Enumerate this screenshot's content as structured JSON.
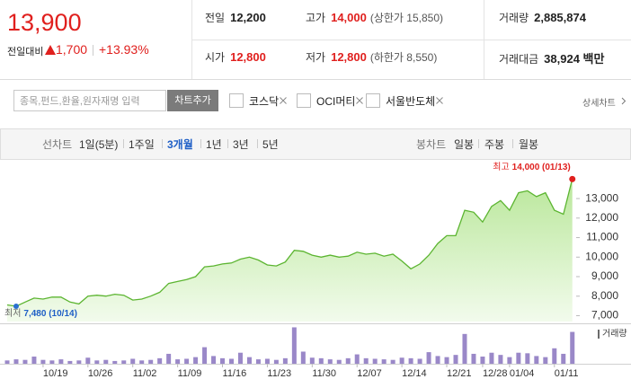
{
  "quote": {
    "price": "13,900",
    "change_label": "전일대비",
    "change": "1,700",
    "change_pct": "+13.93%"
  },
  "stats": [
    {
      "label": "전일",
      "value": "12,200"
    },
    {
      "label": "고가",
      "value": "14,000",
      "note": "(상한가 15,850)"
    },
    {
      "label": "거래량",
      "value": "2,885,874"
    },
    {
      "label": "시가",
      "value": "12,800"
    },
    {
      "label": "저가",
      "value": "12,800",
      "note": "(하한가 8,550)"
    },
    {
      "label": "거래대금",
      "value": "38,924 백만"
    }
  ],
  "toolbar": {
    "placeholder": "종목,펀드,환율,원자재명 입력",
    "button": "차트추가",
    "compare": [
      "코스닥",
      "OCI머티",
      "서울반도체"
    ],
    "detail": "상세차트"
  },
  "tabs": {
    "line_label": "선차트",
    "line": [
      "1일(5분)",
      "1주일",
      "3개월",
      "1년",
      "3년",
      "5년"
    ],
    "selected": 2,
    "candle_label": "봉차트",
    "candle": [
      "일봉",
      "주봉",
      "월봉"
    ]
  },
  "chart_data": [
    {
      "type": "area",
      "series": [
        {
          "color": "#5cb531",
          "values": [
            7550,
            7480,
            7700,
            7900,
            7850,
            7950,
            7950,
            7700,
            7600,
            8000,
            8050,
            8000,
            8100,
            8050,
            7800,
            7850,
            8000,
            8200,
            8650,
            8750,
            8850,
            9000,
            9500,
            9550,
            9650,
            9700,
            9900,
            10000,
            9850,
            9600,
            9550,
            9750,
            10350,
            10300,
            10100,
            10000,
            10100,
            10000,
            10050,
            10250,
            10150,
            10200,
            10050,
            10150,
            9800,
            9400,
            9650,
            10100,
            10700,
            11100,
            11100,
            12400,
            12300,
            11800,
            12600,
            12900,
            12400,
            13300,
            13400,
            13100,
            13300,
            12400,
            12200,
            14000
          ]
        }
      ],
      "ylim": [
        6700,
        14200
      ],
      "yticks": [
        {
          "value": 7000,
          "label": "7,000"
        },
        {
          "value": 8000,
          "label": "8,000"
        },
        {
          "value": 9000,
          "label": "9,000"
        },
        {
          "value": 10000,
          "label": "10,000"
        },
        {
          "value": 11000,
          "label": "11,000"
        },
        {
          "value": 12000,
          "label": "12,000"
        },
        {
          "value": 13000,
          "label": "13,000"
        }
      ],
      "annotations": {
        "high_label": "최고",
        "high": "14,000 (01/13)",
        "low_label": "최저",
        "low": "7,480 (10/14)"
      }
    },
    {
      "type": "bar",
      "categories": [
        null,
        null,
        null,
        null,
        "10/19",
        null,
        null,
        null,
        null,
        "10/26",
        null,
        null,
        null,
        null,
        "11/02",
        null,
        null,
        null,
        null,
        "11/09",
        null,
        null,
        null,
        null,
        "11/16",
        null,
        null,
        null,
        null,
        "11/23",
        null,
        null,
        null,
        null,
        "11/30",
        null,
        null,
        null,
        null,
        "12/07",
        null,
        null,
        null,
        null,
        "12/14",
        null,
        null,
        null,
        null,
        "12/21",
        null,
        null,
        null,
        "12/28",
        null,
        null,
        "01/04",
        null,
        null,
        null,
        null,
        "01/11",
        null,
        null
      ],
      "series": [
        {
          "name": "거래량",
          "color": "#9a88c8",
          "values": [
            300000,
            400000,
            350000,
            650000,
            350000,
            300000,
            400000,
            250000,
            300000,
            550000,
            300000,
            350000,
            250000,
            300000,
            450000,
            300000,
            350000,
            500000,
            900000,
            400000,
            450000,
            600000,
            1500000,
            700000,
            500000,
            450000,
            1000000,
            600000,
            400000,
            450000,
            350000,
            500000,
            3300000,
            1100000,
            550000,
            500000,
            400000,
            350000,
            500000,
            850000,
            500000,
            450000,
            400000,
            350000,
            550000,
            500000,
            450000,
            1050000,
            700000,
            600000,
            800000,
            2700000,
            900000,
            650000,
            1000000,
            800000,
            600000,
            1000000,
            950000,
            700000,
            600000,
            1400000,
            900000,
            2885874
          ]
        }
      ],
      "ylim": [
        0,
        3500000
      ]
    }
  ]
}
